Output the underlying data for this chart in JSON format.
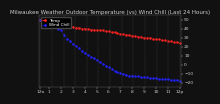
{
  "title": "Milwaukee Weather Outdoor Temperature (vs) Wind Chill (Last 24 Hours)",
  "bg_color": "#111111",
  "plot_bg_color": "#111111",
  "legend_bg_color": "#000000",
  "temp_color": "#ff2222",
  "windchill_color": "#2222ff",
  "temp_values": [
    50,
    50,
    50,
    50,
    50,
    50,
    49,
    49,
    46,
    44,
    43,
    42,
    41,
    41,
    40,
    40,
    40,
    39,
    39,
    38,
    38,
    38,
    37,
    37,
    36,
    36,
    35,
    34,
    34,
    33,
    33,
    32,
    32,
    31,
    31,
    30,
    30,
    30,
    29,
    28,
    28,
    27,
    27,
    26,
    26,
    25,
    25,
    24
  ],
  "windchill_values": [
    50,
    48,
    47,
    45,
    44,
    42,
    40,
    38,
    33,
    29,
    26,
    23,
    21,
    18,
    15,
    13,
    11,
    9,
    7,
    5,
    3,
    1,
    -1,
    -3,
    -5,
    -7,
    -8,
    -9,
    -10,
    -11,
    -12,
    -12,
    -13,
    -13,
    -14,
    -14,
    -14,
    -15,
    -15,
    -15,
    -16,
    -16,
    -16,
    -16,
    -17,
    -17,
    -17,
    -18
  ],
  "ylim": [
    -25,
    55
  ],
  "yticks": [
    50,
    40,
    30,
    20,
    10,
    0,
    -10,
    -20
  ],
  "num_points": 48,
  "grid_color": "#555555",
  "tick_color": "#cccccc",
  "title_color": "#cccccc",
  "legend_temp_label": "Temp",
  "legend_wc_label": "Wind Chill",
  "title_fontsize": 4.0,
  "axis_fontsize": 3.2,
  "legend_fontsize": 3.0,
  "x_hours": [
    "12a",
    "1",
    "2",
    "3",
    "4",
    "5",
    "6",
    "7",
    "8",
    "9",
    "10",
    "11",
    "12p",
    "1",
    "2",
    "3",
    "4",
    "5",
    "6",
    "7",
    "8",
    "9",
    "10",
    "11",
    "12p"
  ]
}
